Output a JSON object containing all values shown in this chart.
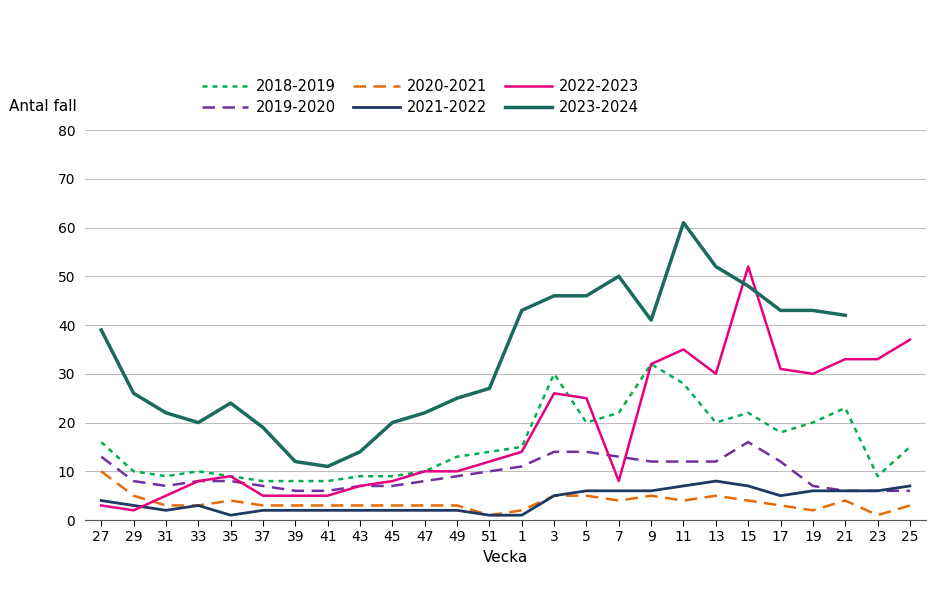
{
  "x_tick_labels": [
    "27",
    "29",
    "31",
    "33",
    "35",
    "37",
    "39",
    "41",
    "43",
    "45",
    "47",
    "49",
    "51",
    "1",
    "3",
    "5",
    "7",
    "9",
    "11",
    "13",
    "15",
    "17",
    "19",
    "21",
    "23",
    "25"
  ],
  "series": {
    "2018-2019": {
      "color": "#00b050",
      "linestyle": "dotted",
      "linewidth": 1.8,
      "values": [
        16,
        10,
        9,
        10,
        9,
        8,
        8,
        8,
        9,
        9,
        10,
        13,
        14,
        15,
        30,
        20,
        22,
        32,
        28,
        20,
        22,
        18,
        20,
        23,
        9,
        15
      ]
    },
    "2019-2020": {
      "color": "#7030a0",
      "linestyle": "dashed",
      "linewidth": 1.8,
      "values": [
        13,
        8,
        7,
        8,
        8,
        7,
        6,
        6,
        7,
        7,
        8,
        9,
        10,
        11,
        14,
        14,
        13,
        12,
        12,
        12,
        16,
        12,
        7,
        6,
        6,
        6
      ]
    },
    "2020-2021": {
      "color": "#e36c09",
      "linestyle": "dashed",
      "linewidth": 1.8,
      "values": [
        10,
        5,
        3,
        3,
        4,
        3,
        3,
        3,
        3,
        3,
        3,
        3,
        1,
        2,
        5,
        5,
        4,
        5,
        4,
        5,
        4,
        3,
        2,
        4,
        1,
        3
      ]
    },
    "2021-2022": {
      "color": "#1f3864",
      "linestyle": "solid",
      "linewidth": 2.0,
      "values": [
        4,
        3,
        2,
        3,
        1,
        2,
        2,
        2,
        2,
        2,
        2,
        2,
        1,
        1,
        5,
        6,
        6,
        6,
        7,
        8,
        7,
        5,
        6,
        6,
        6,
        7
      ]
    },
    "2022-2023": {
      "color": "#e6007e",
      "linestyle": "solid",
      "linewidth": 1.8,
      "values": [
        3,
        2,
        5,
        8,
        9,
        5,
        5,
        5,
        7,
        8,
        10,
        10,
        12,
        14,
        26,
        25,
        8,
        32,
        35,
        30,
        52,
        31,
        30,
        33,
        33,
        37
      ]
    },
    "2023-2024": {
      "color": "#1a6b5e",
      "linestyle": "solid",
      "linewidth": 2.5,
      "values": [
        39,
        26,
        22,
        20,
        24,
        19,
        12,
        11,
        14,
        20,
        22,
        25,
        27,
        43,
        46,
        46,
        50,
        41,
        61,
        52,
        48,
        43,
        43,
        42,
        null,
        null
      ]
    }
  },
  "ylabel": "Antal fall",
  "xlabel": "Vecka",
  "ylim": [
    0,
    80
  ],
  "yticks": [
    0,
    10,
    20,
    30,
    40,
    50,
    60,
    70,
    80
  ],
  "legend_ncol": 3,
  "legend_rows": [
    [
      "2018-2019",
      "2019-2020",
      "2020-2021"
    ],
    [
      "2021-2022",
      "2022-2023",
      "2023-2024"
    ]
  ],
  "background_color": "#ffffff",
  "grid_color": "#bebebe"
}
